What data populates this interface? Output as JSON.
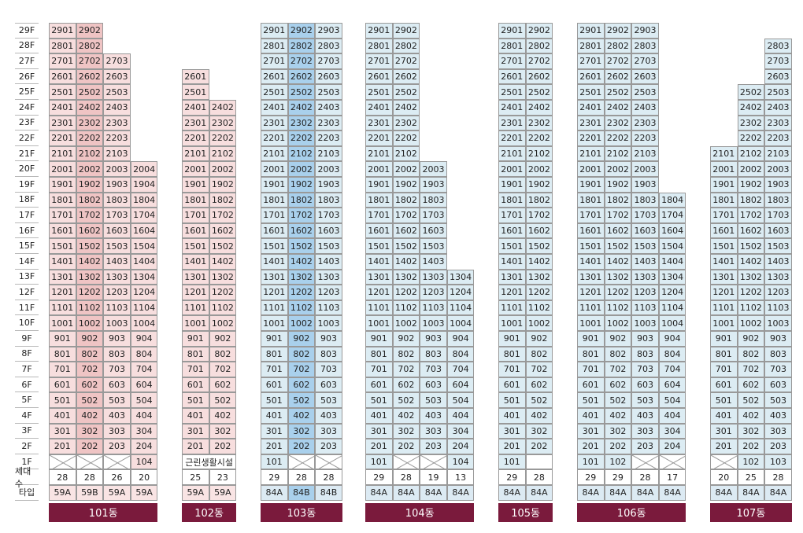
{
  "floor_labels": [
    "29F",
    "28F",
    "27F",
    "26F",
    "25F",
    "24F",
    "23F",
    "22F",
    "21F",
    "20F",
    "19F",
    "18F",
    "17F",
    "16F",
    "15F",
    "14F",
    "13F",
    "12F",
    "11F",
    "10F",
    "9F",
    "8F",
    "7F",
    "6F",
    "5F",
    "4F",
    "3F",
    "2F",
    "1F"
  ],
  "row_labels": {
    "households": "세대수",
    "type": "타입"
  },
  "colors": {
    "pink": "#f7dede",
    "pink_highlight": "#efc4c4",
    "blue": "#dcecf3",
    "blue_highlight": "#a9d0ec",
    "type_pink": "#f9e4e4",
    "type_blue": "#dceaf3",
    "type_blue_highlight": "#a9d0ec",
    "dong_bar": "#7a1a3c"
  },
  "buildings": [
    {
      "name": "101동",
      "color": "pink",
      "highlight_col": 1,
      "lines": [
        {
          "max_floor": 29,
          "first_floor": 2,
          "floor1": "X",
          "count": "28",
          "type": "59A"
        },
        {
          "max_floor": 29,
          "first_floor": 2,
          "floor1": "X",
          "count": "28",
          "type": "59B"
        },
        {
          "max_floor": 27,
          "first_floor": 2,
          "floor1": "X",
          "count": "26",
          "type": "59A"
        },
        {
          "max_floor": 20,
          "first_floor": 1,
          "floor1": "104",
          "count": "20",
          "type": "59A"
        }
      ]
    },
    {
      "name": "102동",
      "color": "pink",
      "highlight_col": -1,
      "floor1_merged": "근린생활시설",
      "lines": [
        {
          "max_floor": 26,
          "first_floor": 2,
          "floor1": "",
          "count": "25",
          "type": "59A"
        },
        {
          "max_floor": 24,
          "first_floor": 2,
          "floor1": "",
          "count": "23",
          "type": "59A"
        }
      ]
    },
    {
      "name": "103동",
      "color": "blue",
      "highlight_col": 1,
      "lines": [
        {
          "max_floor": 29,
          "first_floor": 1,
          "floor1": "101",
          "count": "29",
          "type": "84A"
        },
        {
          "max_floor": 29,
          "first_floor": 2,
          "floor1": "X",
          "count": "28",
          "type": "84B"
        },
        {
          "max_floor": 29,
          "first_floor": 2,
          "floor1": "X",
          "count": "28",
          "type": "84B"
        }
      ]
    },
    {
      "name": "104동",
      "color": "blue",
      "highlight_col": -1,
      "lines": [
        {
          "max_floor": 29,
          "first_floor": 1,
          "floor1": "101",
          "count": "29",
          "type": "84A"
        },
        {
          "max_floor": 29,
          "first_floor": 2,
          "floor1": "X",
          "count": "28",
          "type": "84A"
        },
        {
          "max_floor": 20,
          "first_floor": 2,
          "floor1": "X",
          "count": "19",
          "type": "84A"
        },
        {
          "max_floor": 13,
          "first_floor": 1,
          "floor1": "104",
          "count": "13",
          "type": "84A"
        }
      ]
    },
    {
      "name": "105동",
      "color": "blue",
      "highlight_col": -1,
      "lines": [
        {
          "max_floor": 29,
          "first_floor": 1,
          "floor1": "101",
          "count": "29",
          "type": "84A"
        },
        {
          "max_floor": 29,
          "first_floor": 2,
          "floor1": "",
          "count": "28",
          "type": "84A"
        }
      ]
    },
    {
      "name": "106동",
      "color": "blue",
      "highlight_col": -1,
      "lines": [
        {
          "max_floor": 29,
          "first_floor": 1,
          "floor1": "101",
          "count": "29",
          "type": "84A"
        },
        {
          "max_floor": 29,
          "first_floor": 1,
          "floor1": "102",
          "count": "29",
          "type": "84A"
        },
        {
          "max_floor": 29,
          "first_floor": 2,
          "floor1": "X",
          "count": "28",
          "type": "84A"
        },
        {
          "max_floor": 18,
          "first_floor": 2,
          "floor1": "X",
          "count": "17",
          "type": "84A"
        }
      ]
    },
    {
      "name": "107동",
      "color": "blue",
      "highlight_col": -1,
      "lines": [
        {
          "max_floor": 21,
          "first_floor": 2,
          "floor1": "X",
          "count": "20",
          "type": "84A"
        },
        {
          "max_floor": 25,
          "first_floor": 1,
          "floor1": "102",
          "count": "25",
          "type": "84A"
        },
        {
          "max_floor": 28,
          "first_floor": 1,
          "floor1": "103",
          "count": "28",
          "type": "84A"
        }
      ]
    }
  ]
}
